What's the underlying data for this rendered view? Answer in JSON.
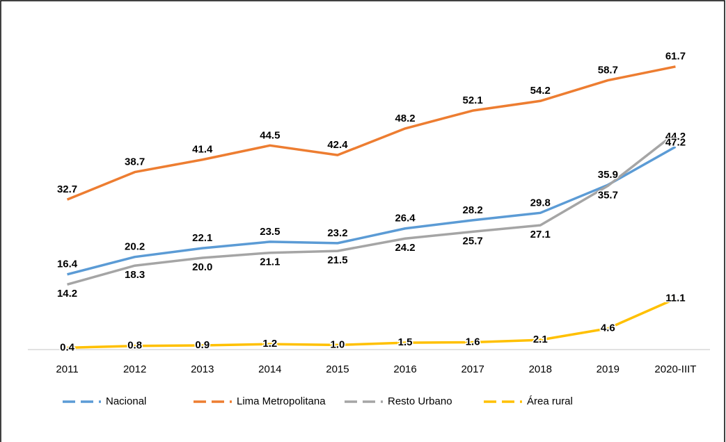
{
  "chart_data": {
    "type": "line",
    "categories": [
      "2011",
      "2012",
      "2013",
      "2014",
      "2015",
      "2016",
      "2017",
      "2018",
      "2019",
      "2020-IIIT"
    ],
    "series": [
      {
        "name": "Nacional",
        "color": "#5b9bd5",
        "values": [
          16.4,
          20.2,
          22.1,
          23.5,
          23.2,
          26.4,
          28.2,
          29.8,
          35.9,
          44.2
        ]
      },
      {
        "name": "Lima Metropolitana",
        "color": "#ed7d31",
        "values": [
          32.7,
          38.7,
          41.4,
          44.5,
          42.4,
          48.2,
          52.1,
          54.2,
          58.7,
          61.7
        ]
      },
      {
        "name": "Resto Urbano",
        "color": "#a5a5a5",
        "values": [
          14.2,
          18.3,
          20.0,
          21.1,
          21.5,
          24.2,
          25.7,
          27.1,
          35.7,
          47.2
        ],
        "value_labels": [
          "14.2",
          "18.3",
          "20.0",
          "21.1",
          "21.5",
          "24.2",
          "25.7",
          "27.1",
          "35.7",
          "47.2"
        ]
      },
      {
        "name": "Área rural",
        "color": "#ffc000",
        "values": [
          0.4,
          0.8,
          0.9,
          1.2,
          1.0,
          1.5,
          1.6,
          2.1,
          4.6,
          11.1
        ],
        "value_labels": [
          "0.4",
          "0.8",
          "0.9",
          "1.2",
          "1.0",
          "1.5",
          "1.6",
          "2.1",
          "4.6",
          "11.1"
        ]
      }
    ],
    "ylim": [
      0,
      70
    ],
    "legend": "bottom"
  }
}
